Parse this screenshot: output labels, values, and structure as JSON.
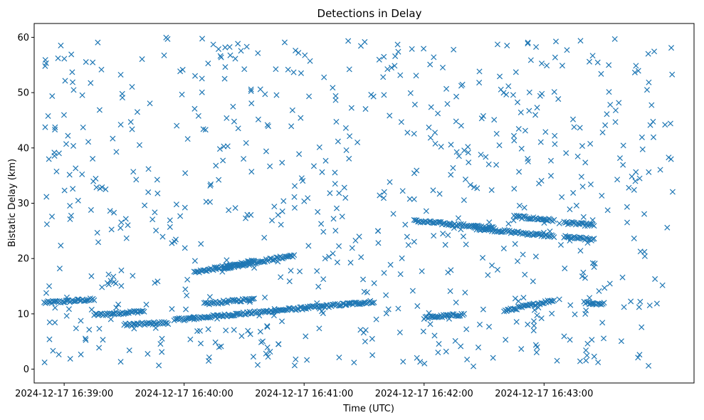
{
  "chart_data": {
    "type": "scatter",
    "title": "Detections in Delay",
    "xlabel": "Time (UTC)",
    "ylabel": "Bistatic Delay (km)",
    "marker": "x",
    "color": "#1f77b4",
    "grid": false,
    "x_ticks": [
      "2024-12-17 16:39:00",
      "2024-12-17 16:40:00",
      "2024-12-17 16:41:00",
      "2024-12-17 16:42:00",
      "2024-12-17 16:43:00"
    ],
    "y_ticks": [
      0,
      10,
      20,
      30,
      40,
      50,
      60
    ],
    "xlim": [
      "2024-12-17 16:38:45",
      "2024-12-17 16:44:15"
    ],
    "ylim": [
      -2.5,
      62.5
    ],
    "tracks": [
      {
        "t_start": "2024-12-17 16:38:50",
        "t_end": "2024-12-17 16:39:15",
        "delay_start": 12.0,
        "delay_end": 12.6
      },
      {
        "t_start": "2024-12-17 16:39:15",
        "t_end": "2024-12-17 16:39:40",
        "delay_start": 9.8,
        "delay_end": 10.5
      },
      {
        "t_start": "2024-12-17 16:39:30",
        "t_end": "2024-12-17 16:39:52",
        "delay_start": 8.0,
        "delay_end": 8.4
      },
      {
        "t_start": "2024-12-17 16:39:55",
        "t_end": "2024-12-17 16:41:35",
        "delay_start": 8.9,
        "delay_end": 12.2
      },
      {
        "t_start": "2024-12-17 16:40:05",
        "t_end": "2024-12-17 16:40:35",
        "delay_start": 17.5,
        "delay_end": 19.5
      },
      {
        "t_start": "2024-12-17 16:40:10",
        "t_end": "2024-12-17 16:40:35",
        "delay_start": 11.8,
        "delay_end": 12.7
      },
      {
        "t_start": "2024-12-17 16:40:20",
        "t_end": "2024-12-17 16:40:55",
        "delay_start": 18.3,
        "delay_end": 20.6
      },
      {
        "t_start": "2024-12-17 16:41:55",
        "t_end": "2024-12-17 16:42:35",
        "delay_start": 26.8,
        "delay_end": 25.5
      },
      {
        "t_start": "2024-12-17 16:42:25",
        "t_end": "2024-12-17 16:43:05",
        "delay_start": 25.5,
        "delay_end": 24.0
      },
      {
        "t_start": "2024-12-17 16:42:45",
        "t_end": "2024-12-17 16:43:05",
        "delay_start": 27.6,
        "delay_end": 26.9
      },
      {
        "t_start": "2024-12-17 16:43:10",
        "t_end": "2024-12-17 16:43:25",
        "delay_start": 26.5,
        "delay_end": 26.0
      },
      {
        "t_start": "2024-12-17 16:43:10",
        "t_end": "2024-12-17 16:43:25",
        "delay_start": 23.9,
        "delay_end": 23.4
      },
      {
        "t_start": "2024-12-17 16:43:20",
        "t_end": "2024-12-17 16:43:30",
        "delay_start": 12.0,
        "delay_end": 11.8
      },
      {
        "t_start": "2024-12-17 16:42:00",
        "t_end": "2024-12-17 16:42:20",
        "delay_start": 9.3,
        "delay_end": 9.9
      },
      {
        "t_start": "2024-12-17 16:42:40",
        "t_end": "2024-12-17 16:43:05",
        "delay_start": 10.5,
        "delay_end": 12.5
      }
    ],
    "clutter": {
      "t_start": "2024-12-17 16:38:50",
      "t_end": "2024-12-17 16:44:05",
      "delay_min": 0.5,
      "delay_max": 60
    }
  }
}
